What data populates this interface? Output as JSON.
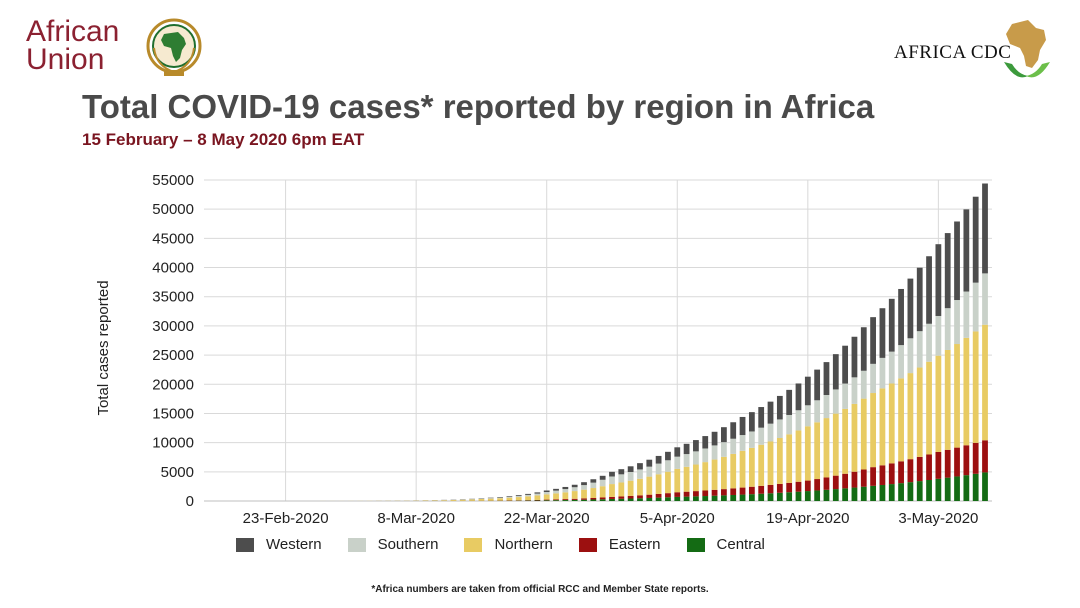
{
  "header": {
    "au_logo_text_line1": "African",
    "au_logo_text_line2": "Union",
    "cdc_logo_text": "AFRICA CDC",
    "title": "Total COVID-19 cases* reported by region in Africa",
    "subtitle": "15 February – 8 May 2020 6pm EAT"
  },
  "footnote": "*Africa numbers are taken from official RCC and Member State reports.",
  "colors": {
    "Western": "#4d4d4d",
    "Southern": "#c9d1c9",
    "Northern": "#e8cb63",
    "Eastern": "#9c1010",
    "Central": "#146b14"
  },
  "chart_data": {
    "type": "bar",
    "stacked": true,
    "ylabel": "Total cases reported",
    "ylim": [
      0,
      55000
    ],
    "yticks": [
      "0",
      "5000",
      "10000",
      "15000",
      "20000",
      "25000",
      "30000",
      "35000",
      "40000",
      "45000",
      "50000",
      "55000"
    ],
    "xtick_labels": [
      "23-Feb-2020",
      "8-Mar-2020",
      "22-Mar-2020",
      "5-Apr-2020",
      "19-Apr-2020",
      "3-May-2020"
    ],
    "x_start": "15-Feb-2020",
    "x_end": "8-May-2020",
    "grid": true,
    "legend_position": "bottom",
    "legend_order": [
      "Western",
      "Southern",
      "Northern",
      "Eastern",
      "Central"
    ],
    "series_order_bottom_to_top": [
      "Central",
      "Eastern",
      "Northern",
      "Southern",
      "Western"
    ],
    "keypoints": [
      {
        "date": "15-Feb-2020",
        "Central": 0,
        "Eastern": 0,
        "Northern": 0,
        "Southern": 0,
        "Western": 0
      },
      {
        "date": "29-Feb-2020",
        "Central": 0,
        "Eastern": 0,
        "Northern": 10,
        "Southern": 0,
        "Western": 5
      },
      {
        "date": "8-Mar-2020",
        "Central": 5,
        "Eastern": 5,
        "Northern": 60,
        "Southern": 10,
        "Western": 20
      },
      {
        "date": "15-Mar-2020",
        "Central": 20,
        "Eastern": 20,
        "Northern": 300,
        "Southern": 70,
        "Western": 60
      },
      {
        "date": "22-Mar-2020",
        "Central": 120,
        "Eastern": 120,
        "Northern": 900,
        "Southern": 400,
        "Western": 260
      },
      {
        "date": "29-Mar-2020",
        "Central": 350,
        "Eastern": 350,
        "Northern": 2200,
        "Southern": 1300,
        "Western": 800
      },
      {
        "date": "5-Apr-2020",
        "Central": 700,
        "Eastern": 800,
        "Northern": 4000,
        "Southern": 2100,
        "Western": 1600
      },
      {
        "date": "12-Apr-2020",
        "Central": 1100,
        "Eastern": 1200,
        "Northern": 6300,
        "Southern": 2700,
        "Western": 3100
      },
      {
        "date": "19-Apr-2020",
        "Central": 1700,
        "Eastern": 1800,
        "Northern": 9300,
        "Southern": 3600,
        "Western": 4900
      },
      {
        "date": "26-Apr-2020",
        "Central": 2600,
        "Eastern": 3200,
        "Northern": 12700,
        "Southern": 5000,
        "Western": 8000
      },
      {
        "date": "3-May-2020",
        "Central": 3800,
        "Eastern": 4600,
        "Northern": 16500,
        "Southern": 6800,
        "Western": 12300
      },
      {
        "date": "8-May-2020",
        "Central": 4900,
        "Eastern": 5500,
        "Northern": 19800,
        "Southern": 8800,
        "Western": 15400
      }
    ]
  }
}
